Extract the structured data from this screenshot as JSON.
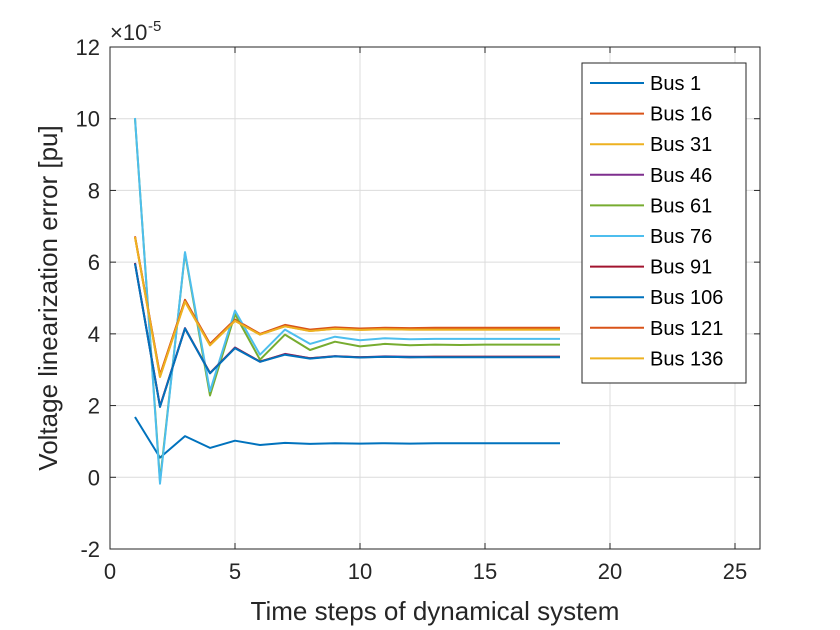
{
  "chart_data": {
    "type": "line",
    "title": "",
    "xlabel": "Time steps of dynamical system",
    "ylabel": "Voltage linearization error [pu]",
    "y_exponent_label": "×10",
    "y_exponent_power": "-5",
    "xlim": [
      0,
      26
    ],
    "ylim": [
      -2,
      12
    ],
    "xticks": [
      0,
      5,
      10,
      15,
      20,
      25
    ],
    "yticks": [
      -2,
      0,
      2,
      4,
      6,
      8,
      10,
      12
    ],
    "grid": true,
    "legend_position": "top-right",
    "x": [
      1,
      2,
      3,
      4,
      5,
      6,
      7,
      8,
      9,
      10,
      11,
      12,
      13,
      14,
      15,
      16,
      17,
      18
    ],
    "series": [
      {
        "name": "Bus 1",
        "color": "#0072BD",
        "values": [
          1.68,
          0.55,
          1.15,
          0.82,
          1.02,
          0.9,
          0.96,
          0.93,
          0.95,
          0.94,
          0.95,
          0.94,
          0.95,
          0.95,
          0.95,
          0.95,
          0.95,
          0.95
        ]
      },
      {
        "name": "Bus 16",
        "color": "#D95319",
        "values": [
          6.72,
          2.85,
          4.95,
          3.72,
          4.4,
          4.0,
          4.25,
          4.12,
          4.18,
          4.15,
          4.17,
          4.16,
          4.17,
          4.17,
          4.17,
          4.17,
          4.17,
          4.17
        ]
      },
      {
        "name": "Bus 31",
        "color": "#EDB120",
        "values": [
          6.7,
          2.8,
          4.9,
          3.68,
          4.36,
          3.98,
          4.21,
          4.08,
          4.14,
          4.11,
          4.13,
          4.12,
          4.12,
          4.12,
          4.12,
          4.12,
          4.12,
          4.12
        ]
      },
      {
        "name": "Bus 46",
        "color": "#7E2F8E",
        "values": [
          5.98,
          1.98,
          4.16,
          2.9,
          3.62,
          3.22,
          3.44,
          3.32,
          3.38,
          3.35,
          3.37,
          3.36,
          3.36,
          3.36,
          3.36,
          3.36,
          3.36,
          3.36
        ]
      },
      {
        "name": "Bus 61",
        "color": "#77AC30",
        "values": [
          10.0,
          -0.1,
          6.25,
          2.28,
          4.55,
          3.28,
          3.98,
          3.55,
          3.78,
          3.65,
          3.72,
          3.68,
          3.7,
          3.69,
          3.7,
          3.7,
          3.7,
          3.7
        ]
      },
      {
        "name": "Bus 76",
        "color": "#4DBEEE",
        "values": [
          10.02,
          -0.18,
          6.28,
          2.4,
          4.65,
          3.42,
          4.12,
          3.72,
          3.92,
          3.82,
          3.88,
          3.85,
          3.86,
          3.86,
          3.86,
          3.86,
          3.86,
          3.86
        ]
      },
      {
        "name": "Bus 91",
        "color": "#A2142F",
        "values": [
          5.97,
          1.97,
          4.15,
          2.91,
          3.61,
          3.23,
          3.43,
          3.32,
          3.37,
          3.35,
          3.36,
          3.35,
          3.36,
          3.36,
          3.36,
          3.36,
          3.36,
          3.36
        ]
      },
      {
        "name": "Bus 106",
        "color": "#0072BD",
        "values": [
          5.96,
          1.96,
          4.15,
          2.9,
          3.6,
          3.22,
          3.42,
          3.31,
          3.37,
          3.34,
          3.36,
          3.35,
          3.35,
          3.35,
          3.35,
          3.35,
          3.35,
          3.35
        ]
      },
      {
        "name": "Bus 121",
        "color": "#D95319",
        "values": [
          6.71,
          2.84,
          4.94,
          3.7,
          4.38,
          3.99,
          4.23,
          4.1,
          4.16,
          4.13,
          4.15,
          4.14,
          4.15,
          4.15,
          4.15,
          4.15,
          4.15,
          4.15
        ]
      },
      {
        "name": "Bus 136",
        "color": "#EDB120",
        "values": [
          6.7,
          2.8,
          4.9,
          3.68,
          4.36,
          3.98,
          4.21,
          4.08,
          4.14,
          4.11,
          4.13,
          4.12,
          4.12,
          4.12,
          4.12,
          4.12,
          4.12,
          4.12
        ]
      }
    ]
  }
}
